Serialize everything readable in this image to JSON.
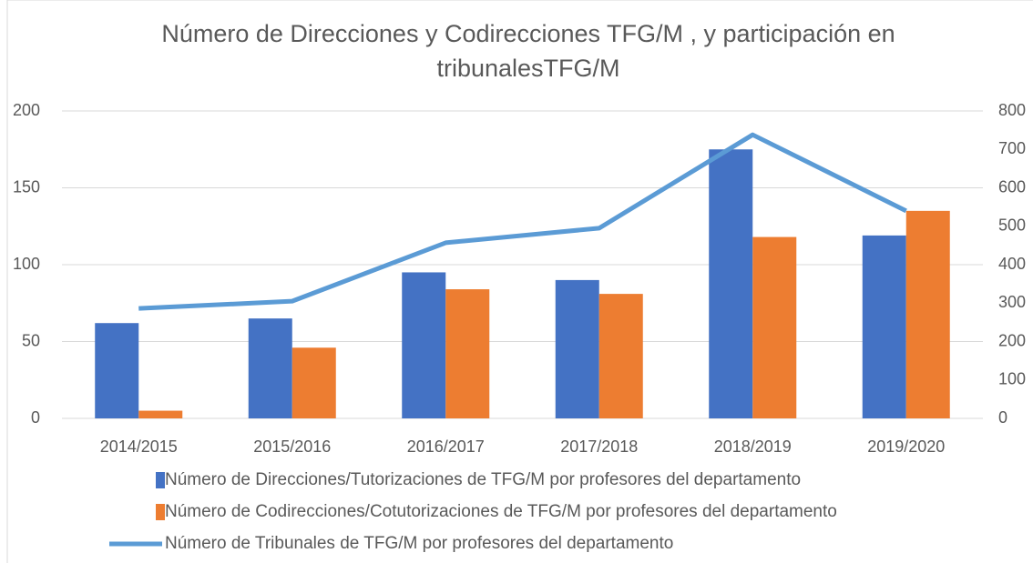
{
  "chart_data": {
    "type": "bar-line",
    "title": "Número de Direcciones y Codirecciones TFG/M , y participación en tribunalesTFG/M",
    "categories": [
      "2014/2015",
      "2015/2016",
      "2016/2017",
      "2017/2018",
      "2018/2019",
      "2019/2020"
    ],
    "series": [
      {
        "name": "Número de Direcciones/Tutorizaciones de TFG/M por profesores del departamento",
        "type": "bar",
        "color": "#4472c4",
        "values": [
          62,
          65,
          95,
          90,
          175,
          119
        ]
      },
      {
        "name": "Número de Codirecciones/Cotutorizaciones de TFG/M por profesores del departamento",
        "type": "bar",
        "color": "#ed7d31",
        "values": [
          5,
          46,
          84,
          81,
          118,
          135
        ]
      },
      {
        "name": "Número de Tribunales de TFG/M por profesores del departamento",
        "type": "line",
        "axis": "y2",
        "color": "#5b9bd5",
        "values": [
          286,
          305,
          457,
          495,
          738,
          540
        ]
      }
    ],
    "ylim": [
      0,
      200
    ],
    "yticks": [
      0,
      50,
      100,
      150,
      200
    ],
    "y2lim": [
      0,
      800
    ],
    "y2ticks": [
      0,
      100,
      200,
      300,
      400,
      500,
      600,
      700,
      800
    ],
    "grid": true,
    "legend": "bottom"
  }
}
